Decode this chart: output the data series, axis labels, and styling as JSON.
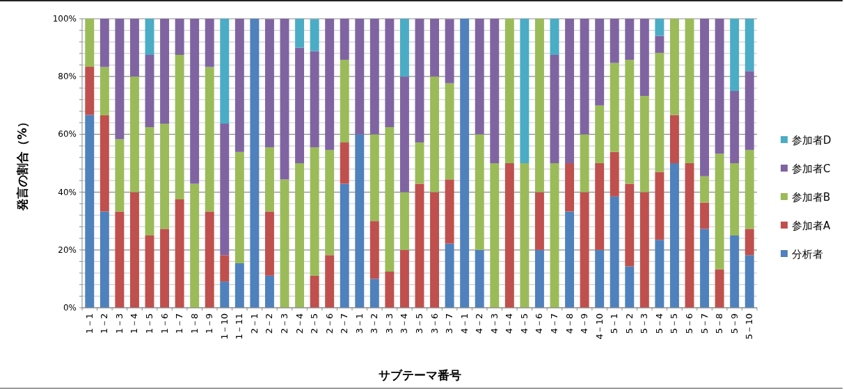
{
  "chart_data": {
    "type": "bar",
    "stacked": true,
    "ylabel": "発言の割合（%）",
    "xlabel": "サブテーマ番号",
    "categories": [
      "1－1",
      "1－2",
      "1－3",
      "1－4",
      "1－5",
      "1－6",
      "1－7",
      "1－8",
      "1－9",
      "1－10",
      "1－11",
      "2－1",
      "2－2",
      "2－3",
      "2－4",
      "2－5",
      "2－6",
      "2－7",
      "3－1",
      "3－2",
      "3－3",
      "3－4",
      "3－5",
      "3－6",
      "3－7",
      "4－1",
      "4－2",
      "4－3",
      "4－4",
      "4－5",
      "4－6",
      "4－7",
      "4－8",
      "4－9",
      "4－10",
      "5－1",
      "5－2",
      "5－3",
      "5－4",
      "5－5",
      "5－6",
      "5－7",
      "5－8",
      "5－9",
      "5－10"
    ],
    "series": [
      {
        "name": "分析者",
        "color": "#4f81bd",
        "values": [
          66.7,
          33.3,
          null,
          null,
          null,
          null,
          null,
          null,
          null,
          9.1,
          15.4,
          100,
          11.1,
          null,
          null,
          null,
          null,
          42.9,
          60,
          10,
          null,
          null,
          null,
          null,
          22.2,
          100,
          20,
          null,
          null,
          null,
          20,
          null,
          33.3,
          null,
          20,
          38.5,
          14.3,
          null,
          23.5,
          50,
          null,
          27.3,
          null,
          25,
          18.2
        ]
      },
      {
        "name": "参加者A",
        "color": "#c0504d",
        "values": [
          16.7,
          33.3,
          33.3,
          40,
          25,
          27.3,
          37.5,
          null,
          33.3,
          9.1,
          null,
          null,
          22.2,
          null,
          null,
          11.1,
          18.2,
          14.3,
          null,
          20,
          12.5,
          20,
          42.9,
          40,
          22.2,
          null,
          null,
          null,
          50,
          null,
          20,
          null,
          16.7,
          40,
          30,
          15.4,
          28.6,
          40,
          23.5,
          16.7,
          50,
          9.1,
          13.3,
          null,
          9.1
        ]
      },
      {
        "name": "参加者B",
        "color": "#9bbb59",
        "values": [
          16.6,
          16.7,
          25,
          40,
          37.5,
          36.4,
          50,
          42.9,
          50,
          null,
          38.5,
          null,
          22.2,
          44.4,
          50,
          44.4,
          36.4,
          28.6,
          null,
          30,
          50,
          20,
          14.3,
          40,
          33.3,
          null,
          40,
          50,
          50,
          50,
          60,
          50,
          null,
          20,
          20,
          30.8,
          42.9,
          33.3,
          41.2,
          33.3,
          50,
          9.1,
          40,
          25,
          27.3
        ]
      },
      {
        "name": "参加者C",
        "color": "#8064a2",
        "values": [
          null,
          16.7,
          41.7,
          20,
          25,
          36.3,
          12.5,
          57.1,
          16.7,
          45.5,
          46.1,
          null,
          44.4,
          55.6,
          40,
          33.3,
          45.4,
          14.2,
          40,
          40,
          37.5,
          40,
          42.8,
          20,
          22.2,
          null,
          40,
          50,
          null,
          null,
          null,
          37.5,
          50,
          40,
          30,
          15.3,
          14.2,
          26.7,
          5.9,
          null,
          null,
          54.5,
          46.7,
          25,
          27.3
        ]
      },
      {
        "name": "参加者D",
        "color": "#4bacc6",
        "values": [
          null,
          null,
          null,
          null,
          12.5,
          null,
          null,
          null,
          null,
          36.3,
          null,
          null,
          null,
          null,
          10,
          11.1,
          null,
          null,
          null,
          null,
          null,
          20,
          null,
          null,
          null,
          null,
          null,
          null,
          null,
          50,
          null,
          12.5,
          null,
          null,
          null,
          null,
          null,
          null,
          5.9,
          null,
          null,
          null,
          null,
          25,
          18.1
        ]
      }
    ],
    "ylim": [
      0,
      100
    ],
    "yticks": [
      {
        "value": 0,
        "label": "0%"
      },
      {
        "value": 4,
        "label": null
      },
      {
        "value": 8,
        "label": null
      },
      {
        "value": 12,
        "label": null
      },
      {
        "value": 16,
        "label": null
      },
      {
        "value": 20,
        "label": "20%"
      },
      {
        "value": 24,
        "label": null
      },
      {
        "value": 28,
        "label": null
      },
      {
        "value": 32,
        "label": null
      },
      {
        "value": 36,
        "label": null
      },
      {
        "value": 40,
        "label": "40%"
      },
      {
        "value": 44,
        "label": null
      },
      {
        "value": 48,
        "label": null
      },
      {
        "value": 52,
        "label": null
      },
      {
        "value": 56,
        "label": null
      },
      {
        "value": 60,
        "label": "60%"
      },
      {
        "value": 64,
        "label": null
      },
      {
        "value": 68,
        "label": null
      },
      {
        "value": 72,
        "label": null
      },
      {
        "value": 76,
        "label": null
      },
      {
        "value": 80,
        "label": "80%"
      },
      {
        "value": 84,
        "label": null
      },
      {
        "value": 88,
        "label": null
      },
      {
        "value": 92,
        "label": null
      },
      {
        "value": 96,
        "label": null
      },
      {
        "value": 100,
        "label": "100%"
      }
    ],
    "grid": "y",
    "legend": "right"
  }
}
